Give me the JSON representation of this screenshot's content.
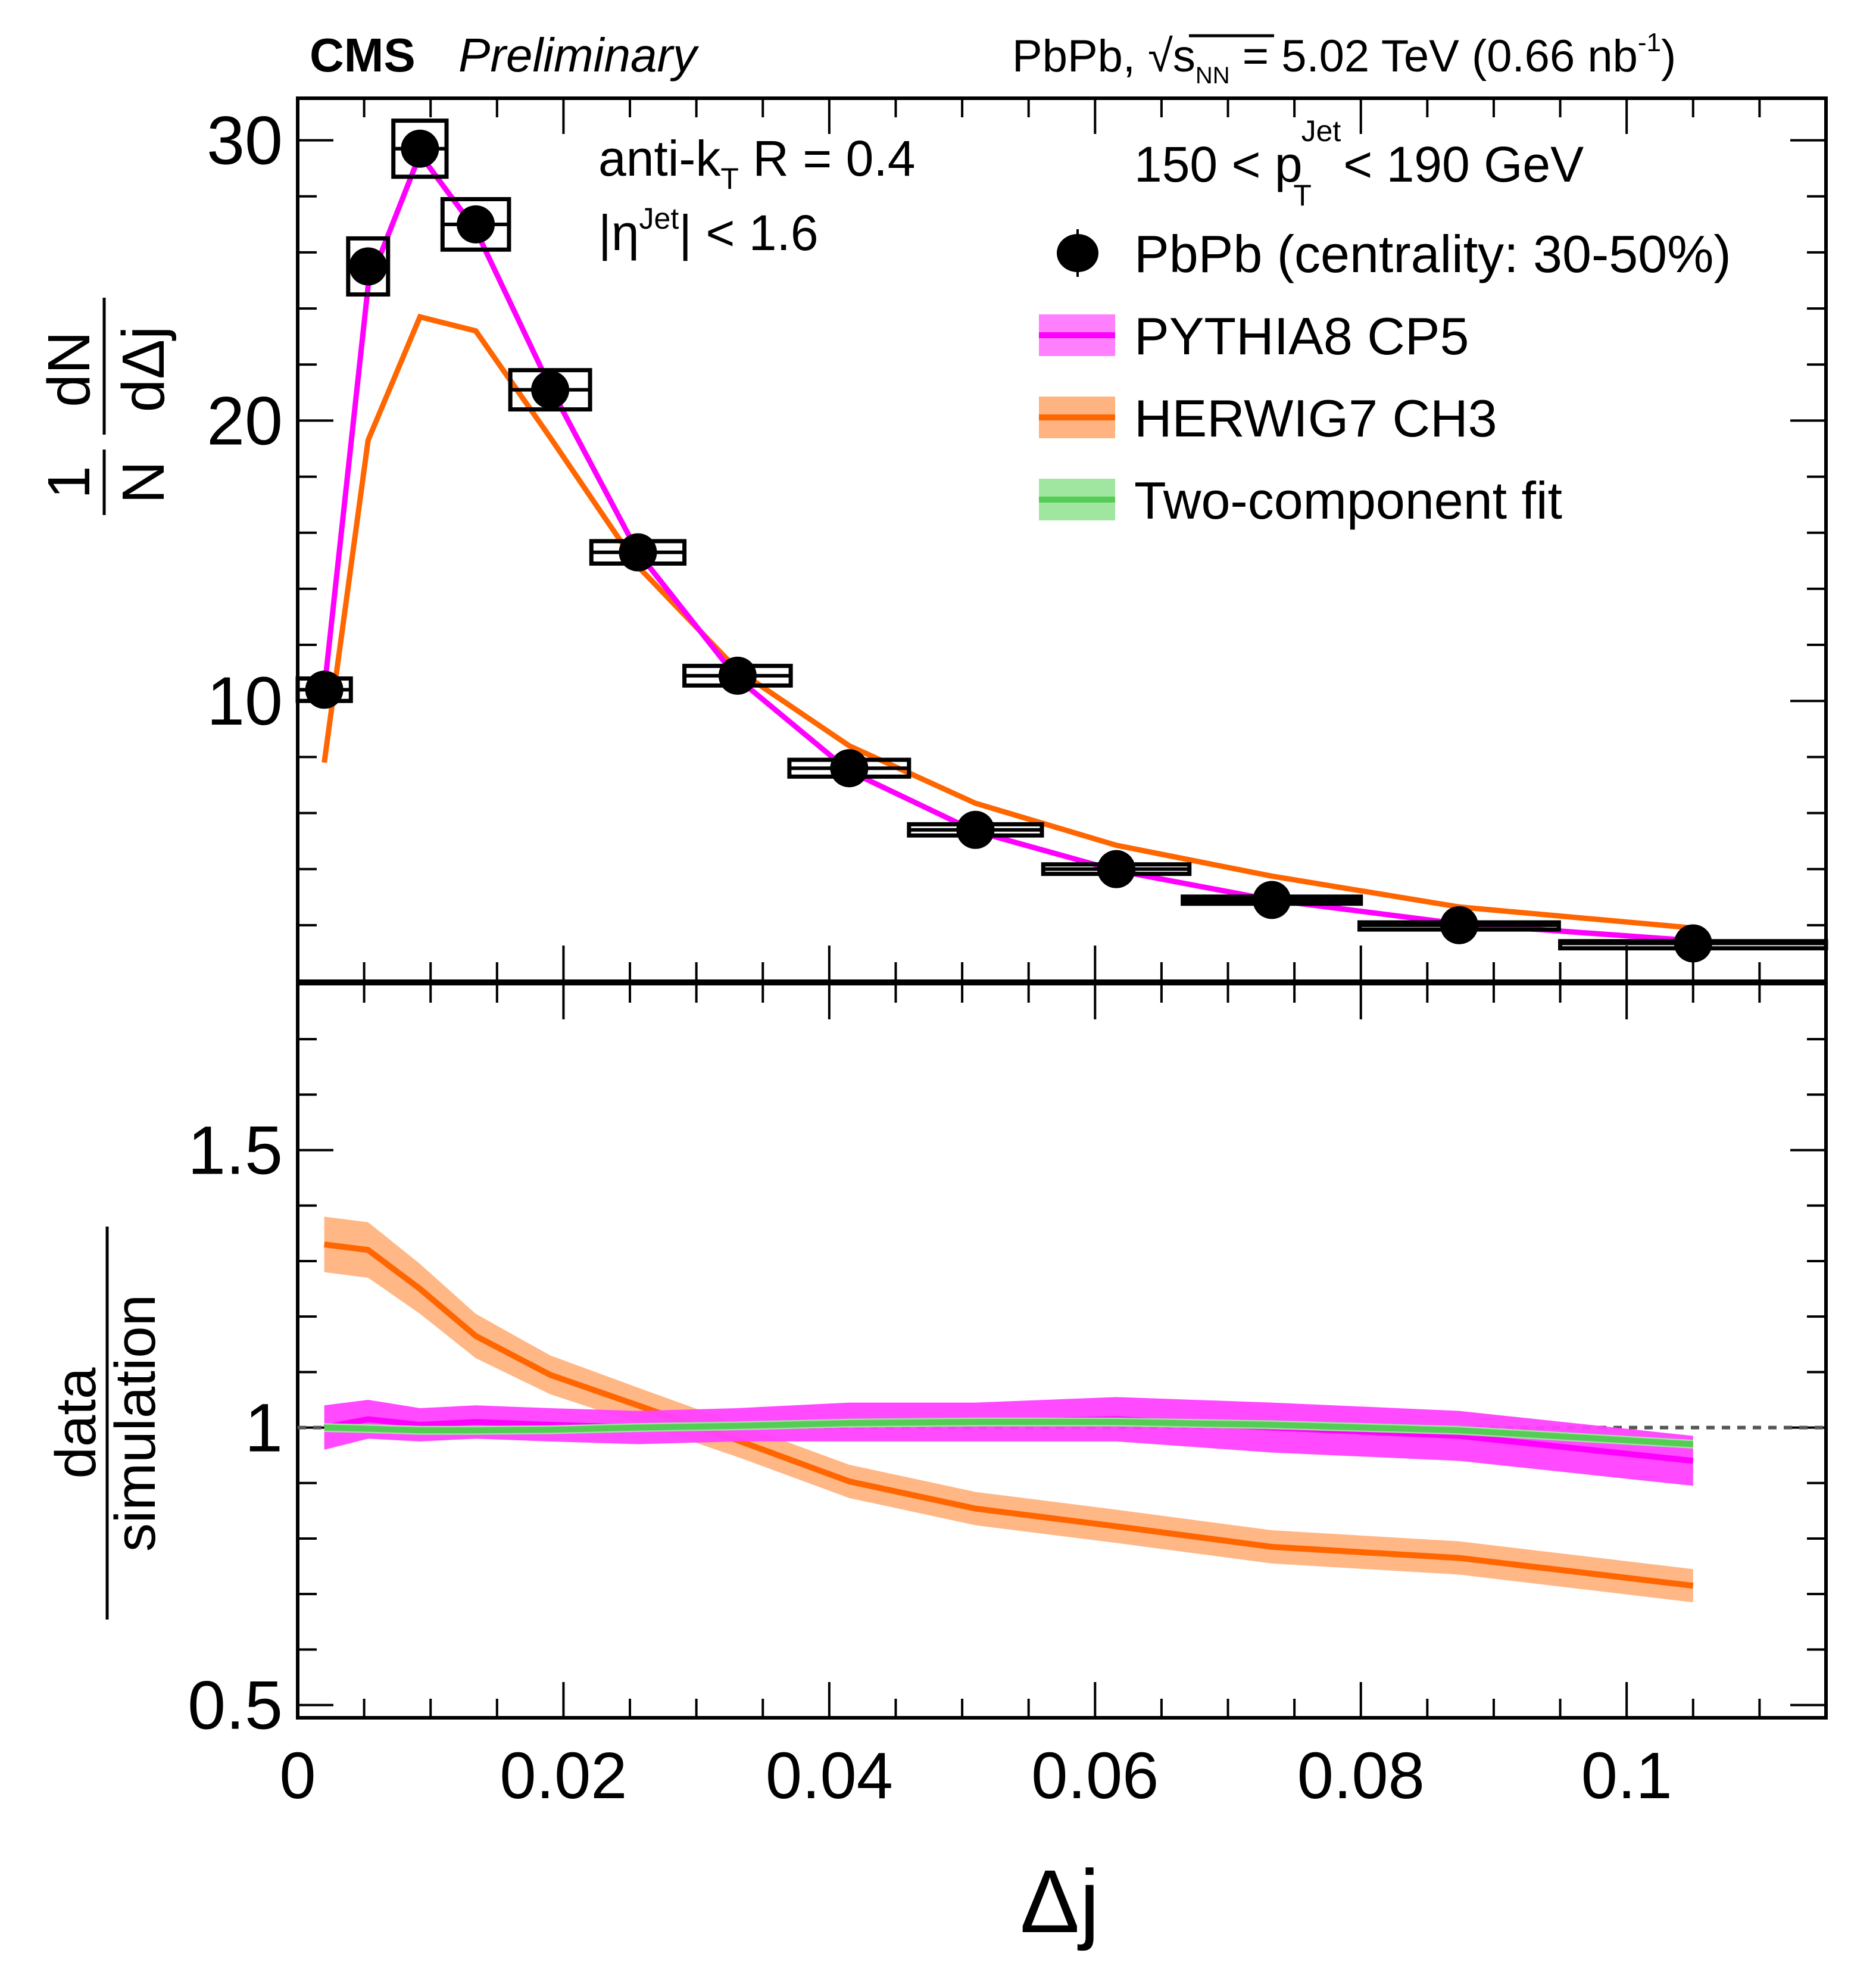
{
  "header": {
    "experiment": "CMS",
    "status": "Preliminary",
    "collision": "PbPb, √s",
    "collision_sub": "NN",
    "energy": " = 5.02 TeV (0.66 nb",
    "lumi_sup": "-1",
    "lumi_close": ")"
  },
  "annotations": {
    "algo_prefix": "anti-k",
    "algo_sub": "T",
    "algo_suffix": " R = 0.4",
    "eta_prefix": "|η",
    "eta_sup": "Jet",
    "eta_suffix": "| < 1.6",
    "pt_prefix": "150 < p",
    "pt_sup": "Jet",
    "pt_sub": "T",
    "pt_suffix": " < 190 GeV"
  },
  "legend": [
    {
      "label": "PbPb (centrality: 30-50%)",
      "type": "marker",
      "color": "#000000"
    },
    {
      "label": "PYTHIA8 CP5",
      "type": "band",
      "color": "#ff00ff",
      "band_color": "#ff80ff"
    },
    {
      "label": "HERWIG7 CH3",
      "type": "band",
      "color": "#ff6600",
      "band_color": "#ffb380"
    },
    {
      "label": "Two-component fit",
      "type": "band",
      "color": "#55cc55",
      "band_color": "#a0e6a0"
    }
  ],
  "chart_data": [
    {
      "type": "line",
      "title": "",
      "xlabel": "Δj",
      "ylabel": "1/N dN/dΔj",
      "ylabel_parts": {
        "num_left": "1",
        "den_left": "N",
        "num_right": "dN",
        "den_right": "dΔj"
      },
      "xlim": [
        0,
        0.115
      ],
      "ylim": [
        0,
        31.5
      ],
      "yticks": [
        10,
        20,
        30
      ],
      "ytick_labels": [
        "10",
        "20",
        "30"
      ],
      "grid": false,
      "legend_position": "top-right",
      "series": [
        {
          "name": "PbPb (centrality: 30-50%)",
          "kind": "points",
          "x": [
            0.002,
            0.0053,
            0.0092,
            0.0134,
            0.019,
            0.0256,
            0.0331,
            0.0415,
            0.051,
            0.0616,
            0.0733,
            0.0874,
            0.105
          ],
          "y": [
            10.4,
            25.5,
            29.7,
            27.0,
            21.1,
            15.3,
            10.9,
            7.6,
            5.4,
            4.0,
            2.9,
            2.0,
            1.35
          ],
          "xerr": [
            0.002,
            0.0015,
            0.002,
            0.0025,
            0.003,
            0.0035,
            0.004,
            0.0045,
            0.005,
            0.0055,
            0.0067,
            0.0075,
            0.01
          ],
          "syst": [
            0.4,
            1.0,
            1.0,
            0.9,
            0.7,
            0.4,
            0.35,
            0.3,
            0.2,
            0.17,
            0.12,
            0.1,
            0.08
          ]
        },
        {
          "name": "PYTHIA8 CP5",
          "kind": "line",
          "x": [
            0.002,
            0.0053,
            0.0092,
            0.0134,
            0.019,
            0.0256,
            0.0331,
            0.0415,
            0.051,
            0.0616,
            0.0733,
            0.0874,
            0.105
          ],
          "y": [
            10.4,
            24.8,
            29.5,
            26.8,
            21.2,
            15.3,
            10.8,
            7.5,
            5.35,
            3.95,
            2.9,
            2.05,
            1.45
          ]
        },
        {
          "name": "HERWIG7 CH3",
          "kind": "line",
          "x": [
            0.002,
            0.0053,
            0.0092,
            0.0134,
            0.019,
            0.0256,
            0.0331,
            0.0415,
            0.051,
            0.0616,
            0.0733,
            0.0874,
            0.105
          ],
          "y": [
            7.8,
            19.3,
            23.7,
            23.2,
            19.4,
            14.8,
            11.1,
            8.4,
            6.35,
            4.85,
            3.75,
            2.65,
            1.9
          ]
        }
      ]
    },
    {
      "type": "area",
      "title": "",
      "xlabel": "Δj",
      "ylabel": "data/simulation",
      "ylabel_parts": {
        "num": "data",
        "den": "simulation"
      },
      "xlim": [
        0,
        0.115
      ],
      "ylim": [
        0.477,
        1.8
      ],
      "yticks": [
        0.5,
        1,
        1.5
      ],
      "ytick_labels": [
        "0.5",
        "1",
        "1.5"
      ],
      "xticks": [
        0,
        0.02,
        0.04,
        0.06,
        0.08,
        0.1
      ],
      "xtick_labels": [
        "0",
        "0.02",
        "0.04",
        "0.06",
        "0.08",
        "0.1"
      ],
      "reference_line": 1,
      "grid": false,
      "series": [
        {
          "name": "HERWIG7 CH3",
          "x": [
            0.002,
            0.0053,
            0.0092,
            0.0134,
            0.019,
            0.0256,
            0.0331,
            0.0415,
            0.051,
            0.0616,
            0.0733,
            0.0874,
            0.105
          ],
          "y": [
            1.33,
            1.32,
            1.25,
            1.165,
            1.095,
            1.04,
            0.977,
            0.903,
            0.854,
            0.822,
            0.785,
            0.765,
            0.715
          ],
          "err": [
            0.05,
            0.05,
            0.045,
            0.04,
            0.035,
            0.032,
            0.03,
            0.03,
            0.03,
            0.03,
            0.03,
            0.03,
            0.03
          ]
        },
        {
          "name": "PYTHIA8 CP5",
          "x": [
            0.002,
            0.0053,
            0.0092,
            0.0134,
            0.019,
            0.0256,
            0.0331,
            0.0415,
            0.051,
            0.0616,
            0.0733,
            0.0874,
            0.105
          ],
          "y": [
            1.0,
            1.015,
            1.005,
            1.01,
            1.005,
            1.0,
            1.005,
            1.01,
            1.01,
            1.015,
            1.0,
            0.985,
            0.94
          ],
          "err": [
            0.04,
            0.035,
            0.03,
            0.03,
            0.03,
            0.03,
            0.03,
            0.035,
            0.035,
            0.04,
            0.045,
            0.045,
            0.045
          ]
        },
        {
          "name": "Two-component fit",
          "x": [
            0.002,
            0.0053,
            0.0092,
            0.0134,
            0.019,
            0.0256,
            0.0331,
            0.0415,
            0.051,
            0.0616,
            0.0733,
            0.0874,
            0.105
          ],
          "y": [
            1.0,
            0.998,
            0.995,
            0.995,
            0.996,
            1.0,
            1.003,
            1.008,
            1.01,
            1.01,
            1.005,
            0.995,
            0.97
          ],
          "err": [
            0.008,
            0.008,
            0.008,
            0.008,
            0.008,
            0.008,
            0.008,
            0.008,
            0.008,
            0.008,
            0.008,
            0.008,
            0.008
          ]
        }
      ]
    }
  ]
}
